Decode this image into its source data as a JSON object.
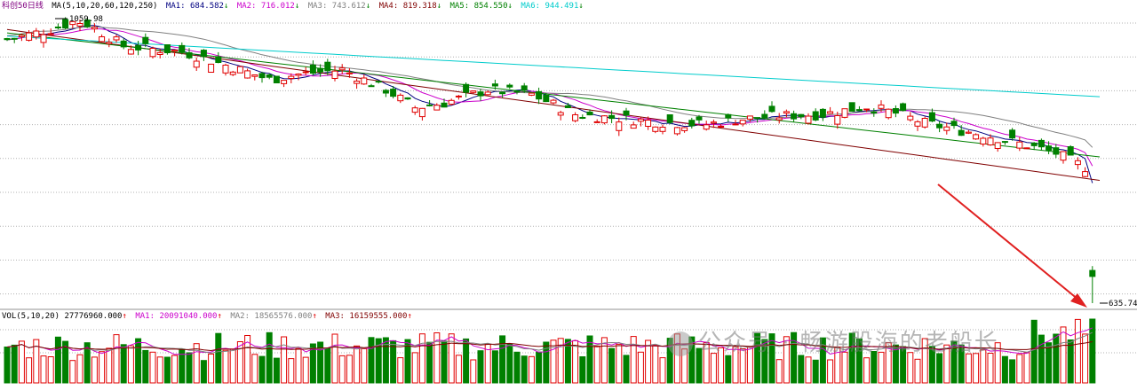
{
  "header": {
    "title": "科创50日线",
    "ma_params": "MA(5,10,20,60,120,250)",
    "ma1": {
      "label": "MA1:",
      "value": "684.582",
      "arrow": "↓",
      "color": "#000080"
    },
    "ma2": {
      "label": "MA2:",
      "value": "716.012",
      "arrow": "↓",
      "color": "#cc00cc"
    },
    "ma3": {
      "label": "MA3:",
      "value": "743.612",
      "arrow": "↓",
      "color": "#808080"
    },
    "ma4": {
      "label": "MA4:",
      "value": "819.318",
      "arrow": "↓",
      "color": "#800000"
    },
    "ma5": {
      "label": "MA5:",
      "value": "854.550",
      "arrow": "↓",
      "color": "#008000"
    },
    "ma6": {
      "label": "MA6:",
      "value": "944.491",
      "arrow": "↓",
      "color": "#00cccc"
    }
  },
  "vol_header": {
    "params": "VOL(5,10,20)",
    "vol": {
      "value": "27776960.000",
      "arrow": "↑",
      "color": "#000000"
    },
    "ma1": {
      "label": "MA1:",
      "value": "20091040.000",
      "arrow": "↑",
      "color": "#cc00cc"
    },
    "ma2": {
      "label": "MA2:",
      "value": "18565576.000",
      "arrow": "↑",
      "color": "#808080"
    },
    "ma3": {
      "label": "MA3:",
      "value": "16159555.000",
      "arrow": "↑",
      "color": "#800000"
    }
  },
  "annotations": {
    "high_label": "1059.98",
    "low_label": "635.74"
  },
  "watermark": "公众号 · 畅游股海的老船长",
  "colors": {
    "up": "#e00000",
    "down": "#008000",
    "arrow": "#e02020",
    "grid": "#b0b0b0"
  },
  "chart_data": {
    "type": "candlestick",
    "title": "科创50日线",
    "ylim": [
      635.74,
      1059.98
    ],
    "y_high": 1059.98,
    "y_low": 635.74,
    "candle_count": 150,
    "ma_latest": {
      "MA5": 684.582,
      "MA10": 716.012,
      "MA20": 743.612,
      "MA60": 819.318,
      "MA120": 854.55,
      "MA250": 944.491
    },
    "volume_latest": {
      "VOL": 27776960.0,
      "MA5": 20091040.0,
      "MA10": 18565576.0,
      "MA20": 16159555.0
    },
    "close_path": [
      [
        0,
        1030
      ],
      [
        6,
        1045
      ],
      [
        10,
        1059.98
      ],
      [
        16,
        1020
      ],
      [
        24,
        1012
      ],
      [
        32,
        985
      ],
      [
        36,
        970
      ],
      [
        40,
        978
      ],
      [
        46,
        985
      ],
      [
        52,
        955
      ],
      [
        56,
        928
      ],
      [
        60,
        935
      ],
      [
        66,
        955
      ],
      [
        72,
        948
      ],
      [
        78,
        918
      ],
      [
        84,
        912
      ],
      [
        90,
        906
      ],
      [
        96,
        903
      ],
      [
        100,
        910
      ],
      [
        106,
        916
      ],
      [
        112,
        918
      ],
      [
        118,
        930
      ],
      [
        122,
        920
      ],
      [
        126,
        905
      ],
      [
        130,
        896
      ],
      [
        134,
        888
      ],
      [
        140,
        872
      ],
      [
        144,
        860
      ],
      [
        148,
        839
      ],
      [
        149,
        635.74
      ]
    ]
  }
}
